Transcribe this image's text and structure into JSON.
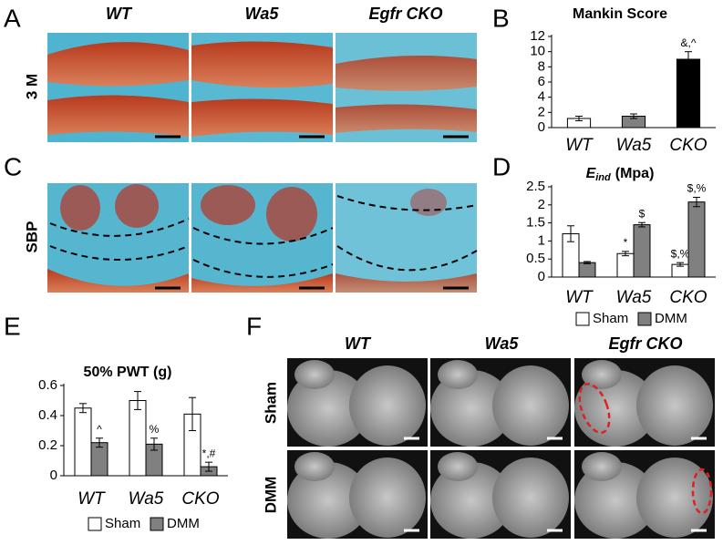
{
  "panels": {
    "a": "A",
    "b": "B",
    "c": "C",
    "d": "D",
    "e": "E",
    "f": "F"
  },
  "histology": {
    "columns": [
      "WT",
      "Wa5",
      "Egfr CKO"
    ],
    "rows": [
      "3 M",
      "SBP"
    ]
  },
  "microct": {
    "columns": [
      "WT",
      "Wa5",
      "Egfr CKO"
    ],
    "rows": [
      "Sham",
      "DMM"
    ]
  },
  "chart_data": [
    {
      "type": "bar",
      "title": "Mankin Score",
      "categories": [
        "WT",
        "Wa5",
        "CKO"
      ],
      "values": [
        1.2,
        1.5,
        9.0
      ],
      "errors": [
        0.3,
        0.3,
        1.0
      ],
      "colors": [
        "#ffffff",
        "#808080",
        "#000000"
      ],
      "bar_labels": [
        null,
        null,
        "&,^"
      ],
      "ylim": [
        0,
        12
      ],
      "yticks": [
        0,
        2,
        4,
        6,
        8,
        10,
        12
      ]
    },
    {
      "type": "bar",
      "title": {
        "symbol": "E",
        "subscript": "ind",
        "unit": "(Mpa)"
      },
      "categories": [
        "WT",
        "Wa5",
        "CKO"
      ],
      "series": [
        {
          "name": "Sham",
          "color": "#ffffff",
          "values": [
            1.2,
            0.65,
            0.35
          ],
          "errors": [
            0.22,
            0.06,
            0.05
          ],
          "bar_labels": [
            null,
            "*",
            "$,%"
          ]
        },
        {
          "name": "DMM",
          "color": "#808080",
          "values": [
            0.4,
            1.45,
            2.08
          ],
          "errors": [
            0.03,
            0.06,
            0.13
          ],
          "bar_labels": [
            null,
            "$",
            "$,%"
          ]
        }
      ],
      "ylim": [
        0,
        2.5
      ],
      "yticks": [
        0,
        0.5,
        1,
        1.5,
        2,
        2.5
      ]
    },
    {
      "type": "bar",
      "title": "50% PWT (g)",
      "categories": [
        "WT",
        "Wa5",
        "CKO"
      ],
      "series": [
        {
          "name": "Sham",
          "color": "#ffffff",
          "values": [
            0.45,
            0.5,
            0.41
          ],
          "errors": [
            0.03,
            0.06,
            0.11
          ],
          "bar_labels": [
            null,
            null,
            null
          ]
        },
        {
          "name": "DMM",
          "color": "#808080",
          "values": [
            0.22,
            0.21,
            0.06
          ],
          "errors": [
            0.03,
            0.04,
            0.03
          ],
          "bar_labels": [
            "^",
            "%",
            "*,#"
          ]
        }
      ],
      "ylim": [
        0,
        0.6
      ],
      "yticks": [
        0,
        0.2,
        0.4,
        0.6
      ]
    }
  ]
}
